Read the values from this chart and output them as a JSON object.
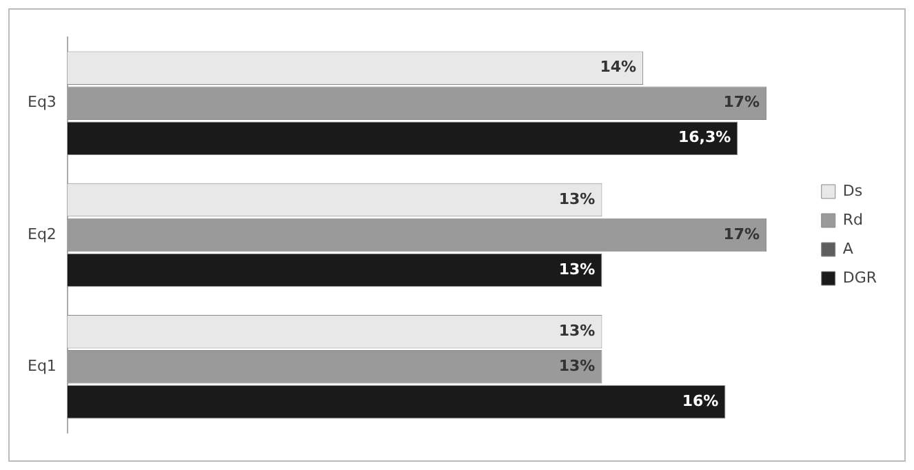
{
  "chart_data": {
    "type": "bar",
    "orientation": "horizontal",
    "categories": [
      "Eq3",
      "Eq2",
      "Eq1"
    ],
    "series": [
      {
        "name": "Ds",
        "color": "#e8e8e8",
        "values": [
          14,
          13,
          13
        ],
        "value_labels": [
          "14%",
          "13%",
          "13%"
        ]
      },
      {
        "name": "Rd",
        "color": "#9a9a9a",
        "values": [
          17,
          17,
          13
        ],
        "value_labels": [
          "17%",
          "17%",
          "13%"
        ]
      },
      {
        "name": "A",
        "color": "#5e5e5e",
        "values": [
          null,
          null,
          null
        ]
      },
      {
        "name": "DGR",
        "color": "#1a1a1a",
        "values": [
          16.3,
          13,
          16
        ],
        "value_labels": [
          "16,3%",
          "13%",
          "16%"
        ]
      }
    ],
    "grid": false,
    "legend": "right",
    "tick_labels": "y"
  }
}
